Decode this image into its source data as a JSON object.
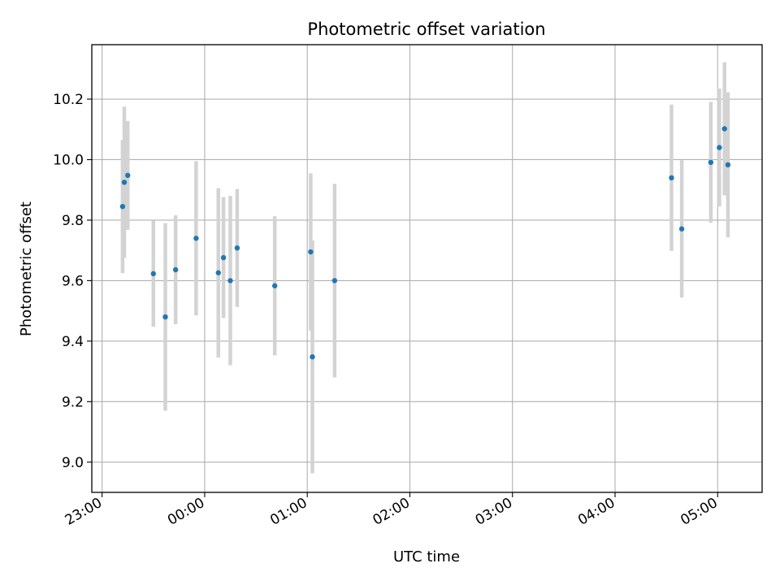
{
  "chart_data": {
    "type": "scatter",
    "title": "Photometric offset variation",
    "xlabel": "UTC time",
    "ylabel": "Photometric offset",
    "grid": true,
    "x_unit": "UTC time (HH:MM)",
    "x_ticks": [
      "23:00",
      "00:00",
      "01:00",
      "02:00",
      "03:00",
      "04:00",
      "05:00"
    ],
    "x_range": [
      "22:54",
      "05:26"
    ],
    "y_ticks": [
      "9.0",
      "9.2",
      "9.4",
      "9.6",
      "9.8",
      "10.0",
      "10.2"
    ],
    "ylim": [
      8.9,
      10.38
    ],
    "colors": {
      "marker": "#1f77b4",
      "errorbar": "#d3d3d3",
      "grid": "#b0b0b0"
    },
    "series": [
      {
        "points": [
          {
            "x": "23:12",
            "y": 9.845,
            "err": 0.22
          },
          {
            "x": "23:13",
            "y": 9.925,
            "err": 0.25
          },
          {
            "x": "23:15",
            "y": 9.948,
            "err": 0.18
          },
          {
            "x": "23:30",
            "y": 9.623,
            "err": 0.175
          },
          {
            "x": "23:37",
            "y": 9.48,
            "err": 0.31
          },
          {
            "x": "23:43",
            "y": 9.636,
            "err": 0.18
          },
          {
            "x": "23:55",
            "y": 9.74,
            "err": 0.255
          },
          {
            "x": "00:08",
            "y": 9.626,
            "err": 0.28
          },
          {
            "x": "00:11",
            "y": 9.676,
            "err": 0.2
          },
          {
            "x": "00:15",
            "y": 9.6,
            "err": 0.28
          },
          {
            "x": "00:19",
            "y": 9.708,
            "err": 0.195
          },
          {
            "x": "00:41",
            "y": 9.583,
            "err": 0.23
          },
          {
            "x": "01:02",
            "y": 9.695,
            "err": 0.26
          },
          {
            "x": "01:03",
            "y": 9.348,
            "err": 0.385
          },
          {
            "x": "01:16",
            "y": 9.6,
            "err": 0.32
          },
          {
            "x": "04:33",
            "y": 9.94,
            "err": 0.242
          },
          {
            "x": "04:39",
            "y": 9.771,
            "err": 0.227
          },
          {
            "x": "04:56",
            "y": 9.991,
            "err": 0.2
          },
          {
            "x": "05:01",
            "y": 10.04,
            "err": 0.195
          },
          {
            "x": "05:04",
            "y": 10.102,
            "err": 0.22
          },
          {
            "x": "05:06",
            "y": 9.983,
            "err": 0.24
          }
        ]
      }
    ]
  }
}
